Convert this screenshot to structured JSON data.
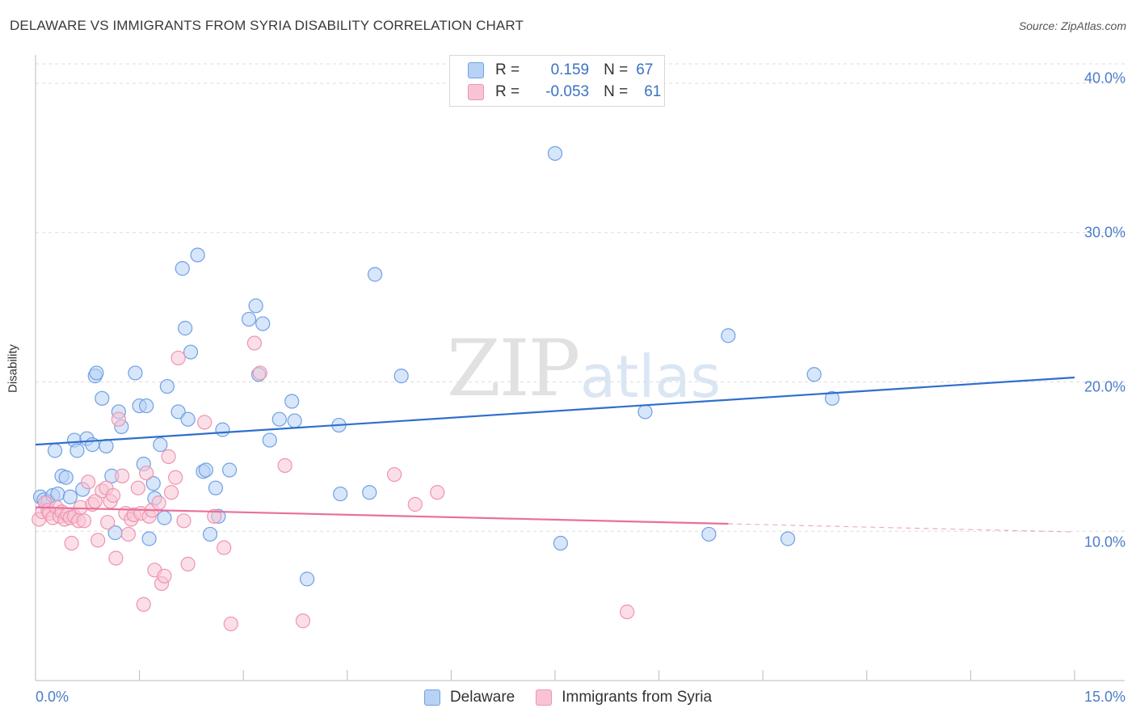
{
  "title": "DELAWARE VS IMMIGRANTS FROM SYRIA DISABILITY CORRELATION CHART",
  "source": "Source: ZipAtlas.com",
  "watermark": {
    "zip": "ZIP",
    "atlas": "atlas"
  },
  "legend": {
    "r_key": "R =",
    "n_key": "N =",
    "rows": [
      {
        "r": "0.159",
        "n": "67",
        "color": "#6fa0e6"
      },
      {
        "r": "-0.053",
        "n": "61",
        "color": "#f08db0"
      }
    ]
  },
  "colors": {
    "delaware_fill": "#b7d2f4",
    "delaware_stroke": "#6fa0e6",
    "delaware_line": "#2f6fcc",
    "syria_fill": "#f8c4d4",
    "syria_stroke": "#ef93b1",
    "syria_line": "#e8709a",
    "tick_label": "#4a7cc9",
    "grid": "#dddddd"
  },
  "chart_data": {
    "type": "scatter",
    "title": "DELAWARE VS IMMIGRANTS FROM SYRIA DISABILITY CORRELATION CHART",
    "xlabel": "",
    "ylabel": "Disability",
    "xlim": [
      0,
      15
    ],
    "ylim": [
      0,
      41.3
    ],
    "x_tick_labels": [
      "0.0%",
      "15.0%"
    ],
    "y_ticks": [
      10,
      20,
      30,
      40
    ],
    "y_tick_labels": [
      "10.0%",
      "20.0%",
      "30.0%",
      "40.0%"
    ],
    "grid": true,
    "series": [
      {
        "name": "Delaware",
        "r": 0.159,
        "n": 67,
        "trend": {
          "x": [
            0.0,
            15.0
          ],
          "y": [
            15.8,
            20.3
          ]
        },
        "points": [
          [
            0.07,
            12.3
          ],
          [
            0.12,
            12.1
          ],
          [
            0.18,
            12.0
          ],
          [
            0.25,
            12.4
          ],
          [
            0.28,
            15.4
          ],
          [
            0.32,
            12.5
          ],
          [
            0.38,
            13.7
          ],
          [
            0.44,
            13.6
          ],
          [
            0.5,
            12.3
          ],
          [
            0.56,
            16.1
          ],
          [
            0.6,
            15.4
          ],
          [
            0.68,
            12.8
          ],
          [
            0.74,
            16.2
          ],
          [
            0.82,
            15.8
          ],
          [
            0.86,
            20.4
          ],
          [
            0.88,
            20.6
          ],
          [
            0.96,
            18.9
          ],
          [
            1.02,
            15.7
          ],
          [
            1.1,
            13.7
          ],
          [
            1.15,
            9.9
          ],
          [
            1.2,
            18.0
          ],
          [
            1.24,
            17.0
          ],
          [
            1.44,
            20.6
          ],
          [
            1.5,
            18.4
          ],
          [
            1.56,
            14.5
          ],
          [
            1.6,
            18.4
          ],
          [
            1.64,
            9.5
          ],
          [
            1.7,
            13.2
          ],
          [
            1.72,
            12.2
          ],
          [
            1.8,
            15.8
          ],
          [
            1.86,
            10.9
          ],
          [
            1.9,
            19.7
          ],
          [
            2.06,
            18.0
          ],
          [
            2.12,
            27.6
          ],
          [
            2.16,
            23.6
          ],
          [
            2.2,
            17.5
          ],
          [
            2.24,
            22.0
          ],
          [
            2.34,
            28.5
          ],
          [
            2.42,
            14.0
          ],
          [
            2.46,
            14.1
          ],
          [
            2.52,
            9.8
          ],
          [
            2.6,
            12.9
          ],
          [
            2.64,
            11.0
          ],
          [
            2.7,
            16.8
          ],
          [
            2.8,
            14.1
          ],
          [
            3.08,
            24.2
          ],
          [
            3.18,
            25.1
          ],
          [
            3.22,
            20.5
          ],
          [
            3.28,
            23.9
          ],
          [
            3.38,
            16.1
          ],
          [
            3.52,
            17.5
          ],
          [
            3.7,
            18.7
          ],
          [
            3.74,
            17.4
          ],
          [
            3.92,
            6.8
          ],
          [
            4.38,
            17.1
          ],
          [
            4.4,
            12.5
          ],
          [
            4.82,
            12.6
          ],
          [
            4.9,
            27.2
          ],
          [
            5.28,
            20.4
          ],
          [
            7.5,
            35.3
          ],
          [
            7.58,
            9.2
          ],
          [
            8.8,
            18.0
          ],
          [
            9.72,
            9.8
          ],
          [
            10.0,
            23.1
          ],
          [
            10.86,
            9.5
          ],
          [
            11.24,
            20.5
          ],
          [
            11.5,
            18.9
          ]
        ]
      },
      {
        "name": "Immigrants from Syria",
        "r": -0.053,
        "n": 61,
        "trend": {
          "x": [
            0.0,
            10.0
          ],
          "y": [
            11.6,
            10.5
          ]
        },
        "trend_dashed": {
          "x": [
            10.0,
            15.0
          ],
          "y": [
            10.5,
            9.95
          ]
        },
        "points": [
          [
            0.05,
            10.8
          ],
          [
            0.1,
            11.3
          ],
          [
            0.14,
            11.9
          ],
          [
            0.18,
            11.4
          ],
          [
            0.2,
            11.2
          ],
          [
            0.25,
            10.9
          ],
          [
            0.3,
            11.6
          ],
          [
            0.35,
            11.0
          ],
          [
            0.38,
            11.3
          ],
          [
            0.42,
            10.8
          ],
          [
            0.46,
            11.1
          ],
          [
            0.5,
            10.9
          ],
          [
            0.52,
            9.2
          ],
          [
            0.56,
            11.0
          ],
          [
            0.62,
            10.7
          ],
          [
            0.65,
            11.6
          ],
          [
            0.7,
            10.7
          ],
          [
            0.76,
            13.3
          ],
          [
            0.82,
            11.8
          ],
          [
            0.86,
            12.0
          ],
          [
            0.9,
            9.4
          ],
          [
            0.96,
            12.7
          ],
          [
            1.02,
            12.9
          ],
          [
            1.04,
            10.6
          ],
          [
            1.08,
            12.0
          ],
          [
            1.12,
            12.4
          ],
          [
            1.16,
            8.2
          ],
          [
            1.2,
            17.5
          ],
          [
            1.25,
            13.7
          ],
          [
            1.3,
            11.2
          ],
          [
            1.34,
            9.8
          ],
          [
            1.38,
            10.8
          ],
          [
            1.42,
            11.1
          ],
          [
            1.48,
            12.9
          ],
          [
            1.52,
            11.2
          ],
          [
            1.56,
            5.1
          ],
          [
            1.6,
            13.9
          ],
          [
            1.64,
            11.0
          ],
          [
            1.68,
            11.4
          ],
          [
            1.72,
            7.4
          ],
          [
            1.78,
            11.9
          ],
          [
            1.82,
            6.5
          ],
          [
            1.86,
            7.0
          ],
          [
            1.92,
            15.0
          ],
          [
            1.96,
            12.6
          ],
          [
            2.02,
            13.6
          ],
          [
            2.06,
            21.6
          ],
          [
            2.14,
            10.7
          ],
          [
            2.2,
            7.8
          ],
          [
            2.44,
            17.3
          ],
          [
            2.58,
            11.0
          ],
          [
            2.72,
            8.9
          ],
          [
            2.82,
            3.8
          ],
          [
            3.16,
            22.6
          ],
          [
            3.24,
            20.6
          ],
          [
            3.6,
            14.4
          ],
          [
            3.86,
            4.0
          ],
          [
            5.18,
            13.8
          ],
          [
            5.48,
            11.8
          ],
          [
            5.8,
            12.6
          ],
          [
            8.54,
            4.6
          ]
        ]
      }
    ]
  }
}
